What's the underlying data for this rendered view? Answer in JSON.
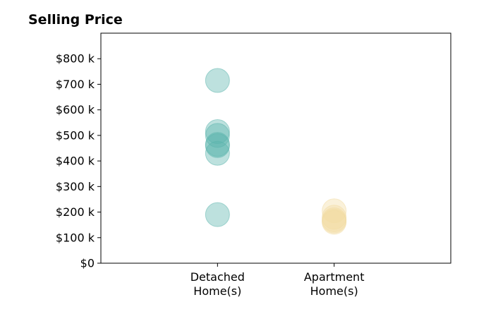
{
  "chart_data": {
    "type": "scatter",
    "title": "Selling Price",
    "xlabel": "",
    "ylabel": "",
    "categories": [
      [
        "Detached",
        "Home(s)"
      ],
      [
        "Apartment",
        "Home(s)"
      ]
    ],
    "xlim": [
      -0.5,
      2.5
    ],
    "ylim": [
      0,
      900000
    ],
    "y_ticks": [
      {
        "value": 0,
        "label": "$0"
      },
      {
        "value": 100000,
        "label": "$100 k"
      },
      {
        "value": 200000,
        "label": "$200 k"
      },
      {
        "value": 300000,
        "label": "$300 k"
      },
      {
        "value": 400000,
        "label": "$400 k"
      },
      {
        "value": 500000,
        "label": "$500 k"
      },
      {
        "value": 600000,
        "label": "$600 k"
      },
      {
        "value": 700000,
        "label": "$700 k"
      },
      {
        "value": 800000,
        "label": "$800 k"
      }
    ],
    "grid": false,
    "series": [
      {
        "category_index": 0,
        "color": "#5ab4ac",
        "values": [
          715000,
          515000,
          500000,
          465000,
          460000,
          430000,
          190000
        ]
      },
      {
        "category_index": 1,
        "color": "#f2dca2",
        "values": [
          205000,
          180000,
          170000,
          165000,
          160000
        ]
      }
    ]
  }
}
